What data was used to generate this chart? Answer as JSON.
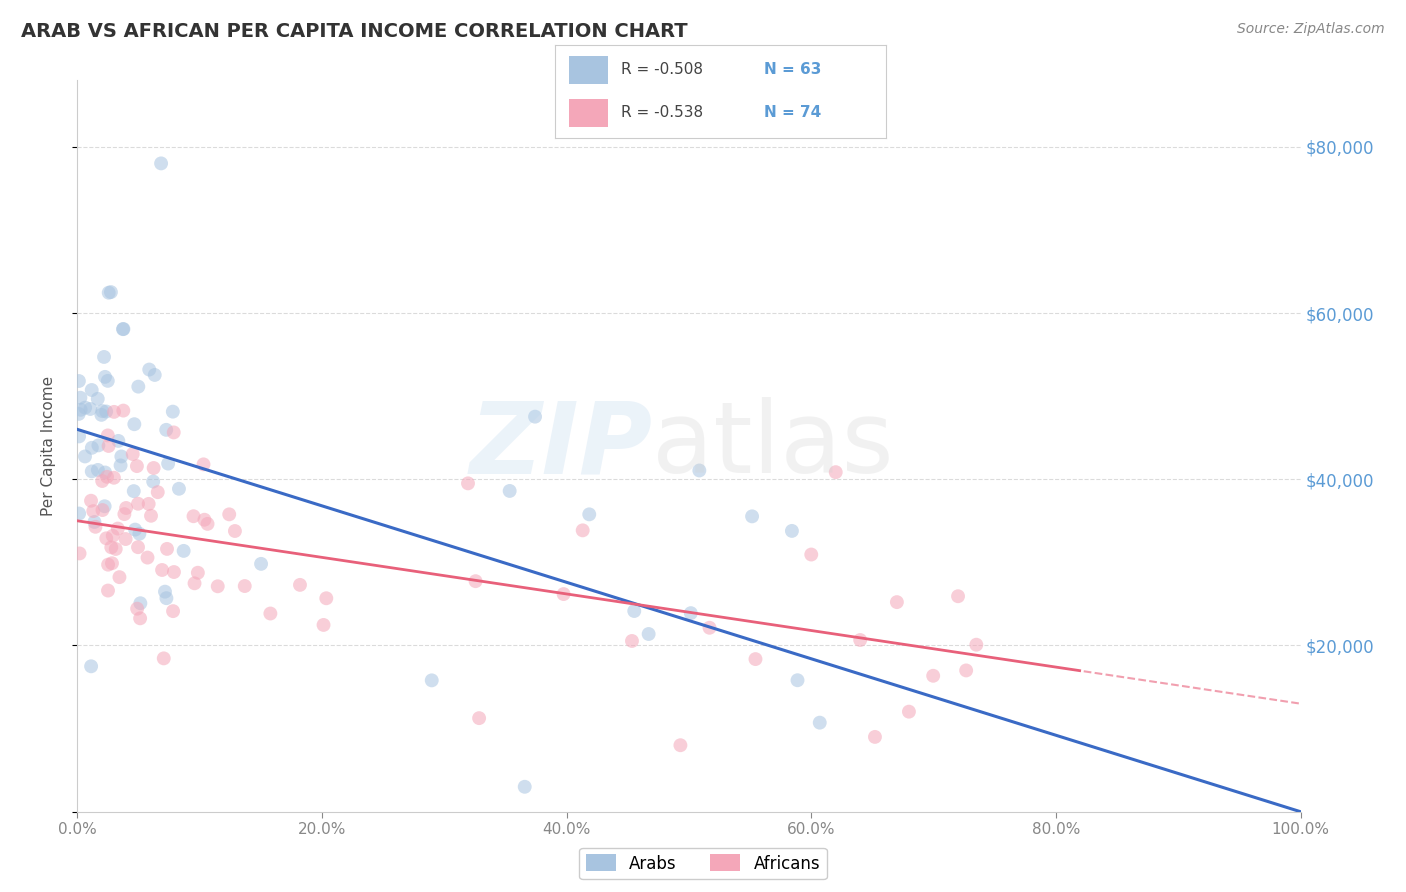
{
  "title": "ARAB VS AFRICAN PER CAPITA INCOME CORRELATION CHART",
  "source": "Source: ZipAtlas.com",
  "ylabel": "Per Capita Income",
  "xlim": [
    0.0,
    1.0
  ],
  "ylim": [
    0,
    88000
  ],
  "yticks": [
    0,
    20000,
    40000,
    60000,
    80000
  ],
  "xticks": [
    0.0,
    0.2,
    0.4,
    0.6,
    0.8,
    1.0
  ],
  "xtick_labels": [
    "0.0%",
    "20.0%",
    "40.0%",
    "60.0%",
    "80.0%",
    "100.0%"
  ],
  "arab_color": "#a8c4e0",
  "african_color": "#f4a7b9",
  "arab_line_color": "#3a6ac5",
  "african_line_color": "#e8607a",
  "arab_R": -0.508,
  "arab_N": 63,
  "african_R": -0.538,
  "african_N": 74,
  "legend_labels": [
    "Arabs",
    "Africans"
  ],
  "title_color": "#333333",
  "axis_label_color": "#5b9bd5",
  "grid_color": "#cccccc",
  "arab_intercept": 46000,
  "arab_slope": -46000,
  "african_intercept": 35000,
  "african_slope": -22000,
  "marker_size": 100,
  "marker_alpha": 0.55
}
